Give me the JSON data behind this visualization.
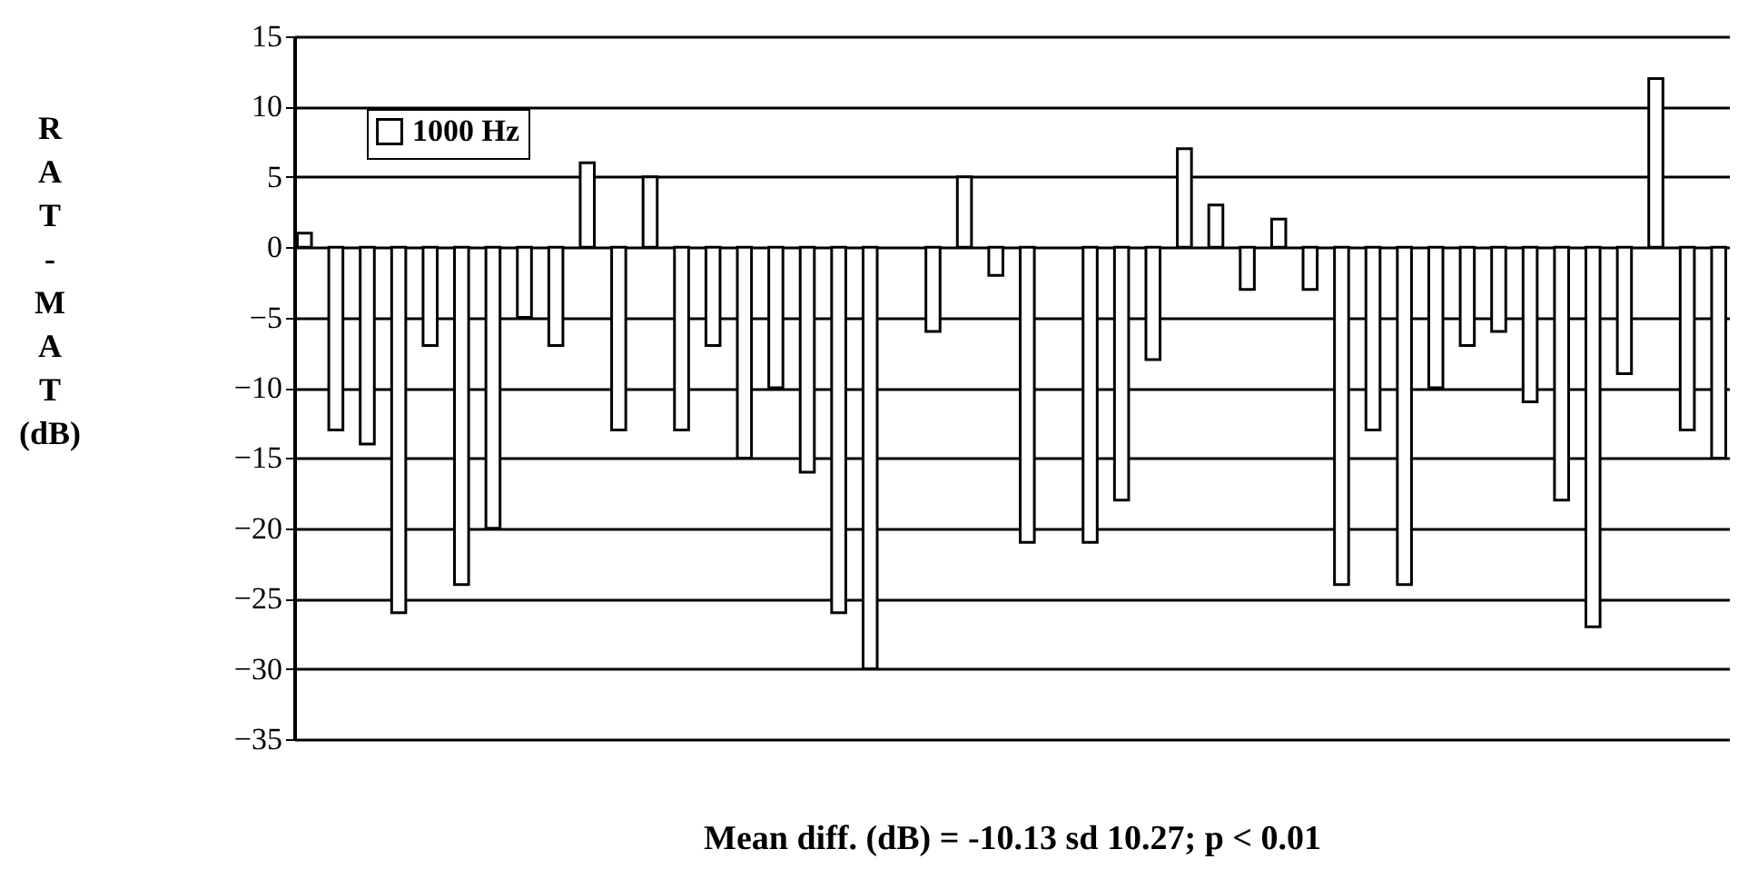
{
  "chart_data": {
    "type": "bar",
    "ylabel": "RAT-MAT (dB)",
    "annotations": [
      "Mean diff. (dB) = -10.13 sd 10.27; p < 0.01"
    ],
    "categories": [
      null,
      null,
      null,
      null,
      null,
      null,
      null,
      null,
      null,
      null,
      null,
      null,
      null,
      null,
      null,
      null,
      null,
      null,
      null,
      null,
      null,
      null,
      null,
      null,
      null,
      null,
      null,
      null,
      null,
      null,
      null,
      null,
      null,
      null,
      null,
      null,
      null,
      null,
      null,
      null,
      null,
      null,
      null,
      null,
      null,
      null
    ],
    "series": [
      {
        "name": "1000 Hz",
        "color": "#ffffff",
        "values": [
          1,
          -13,
          -14,
          -26,
          -7,
          -24,
          -20,
          -5,
          -7,
          6,
          -13,
          5,
          -13,
          -7,
          -15,
          -10,
          -16,
          -26,
          -30,
          null,
          -6,
          5,
          -2,
          -21,
          null,
          -21,
          -18,
          -8,
          7,
          3,
          -3,
          2,
          -3,
          -24,
          -13,
          -24,
          -10,
          -7,
          -6,
          -11,
          -18,
          -27,
          -9,
          12,
          -13,
          -15
        ]
      }
    ],
    "ylim": [
      -35,
      15
    ],
    "yticks": [
      -35,
      -30,
      -25,
      -20,
      -15,
      -10,
      -5,
      0,
      5,
      10,
      15
    ],
    "grid": "y",
    "legend": "top left",
    "tick_labels": "y"
  }
}
